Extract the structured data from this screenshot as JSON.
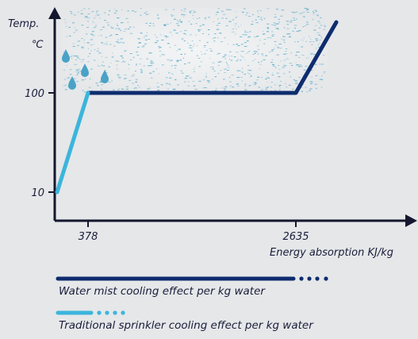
{
  "chart_data": {
    "type": "line",
    "y_axis": {
      "label_line1": "Temp.",
      "label_line2": "℃",
      "ticks": [
        "100",
        "10"
      ]
    },
    "x_axis": {
      "label": "Energy absorption KJ/kg",
      "ticks": [
        "378",
        "2635"
      ]
    },
    "series": [
      {
        "name": "Water mist cooling effect per kg water",
        "color": "#0e2c6e",
        "points": [
          [
            378,
            100
          ],
          [
            2635,
            100
          ],
          [
            3050,
            640
          ]
        ]
      },
      {
        "name": "Traditional sprinkler cooling effect per kg water",
        "color": "#3bb5dc",
        "points": [
          [
            0,
            10
          ],
          [
            378,
            100
          ]
        ]
      }
    ]
  },
  "colors": {
    "mist_cloud": "#4aa8c8",
    "axis": "#14172e"
  }
}
